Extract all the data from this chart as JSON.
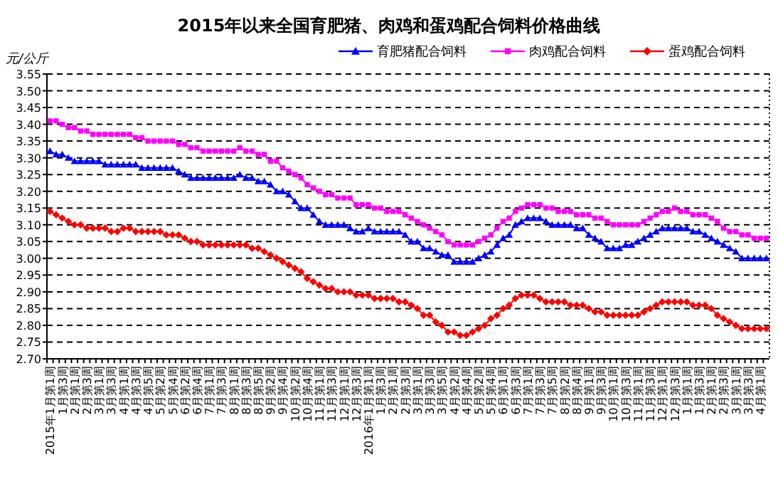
{
  "chart_data": {
    "type": "line",
    "title": "2015年以来全国育肥猪、肉鸡和蛋鸡配合饲料价格曲线",
    "ylabel": "元/公斤",
    "categories": [
      "2015年1月第1周",
      null,
      "1月第3周",
      null,
      "2月第1周",
      null,
      "2月第3周",
      null,
      "3月第1周",
      null,
      "3月第3周",
      null,
      "4月第1周",
      null,
      "4月第3周",
      null,
      "4月第5周",
      null,
      "5月第2周",
      null,
      "5月第4周",
      null,
      "6月第2周",
      null,
      "6月第4周",
      null,
      "7月第1周",
      null,
      "7月第3周",
      null,
      "8月第1周",
      null,
      "8月第3周",
      null,
      "8月第5周",
      null,
      "9月第2周",
      null,
      "9月第4周",
      null,
      "10月第2周",
      null,
      "10月第4周",
      null,
      "11月第1周",
      null,
      "11月第3周",
      null,
      "12月第1周",
      null,
      "12月第3周",
      null,
      "2016年1月第1周",
      null,
      "1月第3周",
      null,
      "2月第1周",
      null,
      "2月第3周",
      null,
      "3月第1周",
      null,
      "3月第3周",
      null,
      "3月第5周",
      null,
      "4月第2周",
      null,
      "4月第4周",
      null,
      "5月第2周",
      null,
      "5月第4周",
      null,
      "6月第1周",
      null,
      "6月第3周",
      null,
      "7月第1周",
      null,
      "7月第3周",
      null,
      "7月第5周",
      null,
      "8月第2周",
      null,
      "8月第4周",
      null,
      "9月第1周",
      null,
      "9月第3周",
      null,
      "10月第1周",
      null,
      "10月第3周",
      null,
      "11月第1周",
      null,
      "11月第3周",
      null,
      "12月第1周",
      null,
      "12月第3周",
      null,
      "1月第1周",
      null,
      "1月第3周",
      null,
      "2月第1周",
      null,
      "2月第3周",
      null,
      "3月第1周",
      null,
      "3月第3周",
      null,
      "4月第1周",
      null
    ],
    "series": [
      {
        "name": "育肥猪配合饲料",
        "color": "#0000ff",
        "marker": "triangle",
        "values": [
          3.32,
          3.31,
          3.31,
          3.3,
          3.29,
          3.29,
          3.29,
          3.29,
          3.29,
          3.28,
          3.28,
          3.28,
          3.28,
          3.28,
          3.28,
          3.27,
          3.27,
          3.27,
          3.27,
          3.27,
          3.27,
          3.26,
          3.25,
          3.24,
          3.24,
          3.24,
          3.24,
          3.24,
          3.24,
          3.24,
          3.24,
          3.25,
          3.24,
          3.24,
          3.23,
          3.23,
          3.22,
          3.2,
          3.2,
          3.19,
          3.17,
          3.15,
          3.15,
          3.13,
          3.11,
          3.1,
          3.1,
          3.1,
          3.1,
          3.09,
          3.08,
          3.08,
          3.09,
          3.08,
          3.08,
          3.08,
          3.08,
          3.08,
          3.07,
          3.05,
          3.05,
          3.03,
          3.03,
          3.02,
          3.01,
          3.01,
          2.99,
          2.99,
          2.99,
          2.99,
          3.0,
          3.01,
          3.02,
          3.04,
          3.06,
          3.07,
          3.1,
          3.11,
          3.12,
          3.12,
          3.12,
          3.11,
          3.1,
          3.1,
          3.1,
          3.1,
          3.09,
          3.09,
          3.07,
          3.06,
          3.05,
          3.03,
          3.03,
          3.03,
          3.04,
          3.04,
          3.05,
          3.06,
          3.07,
          3.08,
          3.09,
          3.09,
          3.09,
          3.09,
          3.09,
          3.08,
          3.08,
          3.07,
          3.06,
          3.05,
          3.04,
          3.03,
          3.02,
          3.0,
          3.0,
          3.0,
          3.0,
          3.0
        ]
      },
      {
        "name": "肉鸡配合饲料",
        "color": "#ff00ff",
        "marker": "square",
        "values": [
          3.41,
          3.41,
          3.4,
          3.39,
          3.39,
          3.38,
          3.38,
          3.37,
          3.37,
          3.37,
          3.37,
          3.37,
          3.37,
          3.37,
          3.36,
          3.36,
          3.35,
          3.35,
          3.35,
          3.35,
          3.35,
          3.34,
          3.34,
          3.33,
          3.33,
          3.32,
          3.32,
          3.32,
          3.32,
          3.32,
          3.32,
          3.33,
          3.32,
          3.32,
          3.31,
          3.31,
          3.29,
          3.29,
          3.27,
          3.26,
          3.25,
          3.24,
          3.22,
          3.21,
          3.2,
          3.19,
          3.19,
          3.18,
          3.18,
          3.18,
          3.16,
          3.16,
          3.16,
          3.15,
          3.15,
          3.14,
          3.14,
          3.14,
          3.13,
          3.12,
          3.11,
          3.1,
          3.09,
          3.08,
          3.07,
          3.05,
          3.04,
          3.04,
          3.04,
          3.04,
          3.05,
          3.06,
          3.07,
          3.09,
          3.11,
          3.12,
          3.14,
          3.15,
          3.16,
          3.16,
          3.16,
          3.15,
          3.15,
          3.14,
          3.14,
          3.14,
          3.13,
          3.13,
          3.13,
          3.12,
          3.12,
          3.11,
          3.1,
          3.1,
          3.1,
          3.1,
          3.1,
          3.11,
          3.12,
          3.13,
          3.14,
          3.14,
          3.15,
          3.14,
          3.14,
          3.13,
          3.13,
          3.13,
          3.12,
          3.11,
          3.09,
          3.08,
          3.08,
          3.07,
          3.07,
          3.06,
          3.06,
          3.06
        ]
      },
      {
        "name": "蛋鸡配合饲料",
        "color": "#ff0000",
        "marker": "diamond",
        "values": [
          3.14,
          3.13,
          3.12,
          3.11,
          3.1,
          3.1,
          3.09,
          3.09,
          3.09,
          3.09,
          3.08,
          3.08,
          3.09,
          3.09,
          3.08,
          3.08,
          3.08,
          3.08,
          3.08,
          3.07,
          3.07,
          3.07,
          3.06,
          3.05,
          3.05,
          3.04,
          3.04,
          3.04,
          3.04,
          3.04,
          3.04,
          3.04,
          3.04,
          3.03,
          3.03,
          3.02,
          3.01,
          3.0,
          2.99,
          2.98,
          2.97,
          2.96,
          2.94,
          2.93,
          2.92,
          2.91,
          2.91,
          2.9,
          2.9,
          2.9,
          2.89,
          2.89,
          2.89,
          2.88,
          2.88,
          2.88,
          2.88,
          2.87,
          2.87,
          2.86,
          2.85,
          2.83,
          2.83,
          2.81,
          2.8,
          2.78,
          2.78,
          2.77,
          2.77,
          2.78,
          2.79,
          2.8,
          2.82,
          2.83,
          2.85,
          2.86,
          2.88,
          2.89,
          2.89,
          2.89,
          2.88,
          2.87,
          2.87,
          2.87,
          2.87,
          2.86,
          2.86,
          2.86,
          2.85,
          2.84,
          2.84,
          2.83,
          2.83,
          2.83,
          2.83,
          2.83,
          2.83,
          2.84,
          2.85,
          2.86,
          2.87,
          2.87,
          2.87,
          2.87,
          2.87,
          2.86,
          2.86,
          2.86,
          2.85,
          2.83,
          2.82,
          2.81,
          2.8,
          2.79,
          2.79,
          2.79,
          2.79,
          2.79
        ]
      }
    ],
    "ylim": [
      2.7,
      3.55
    ],
    "yticks": [
      {
        "value": 2.7,
        "label": "2.70"
      },
      2.75,
      {
        "value": 2.8,
        "label": "2.80"
      },
      2.85,
      {
        "value": 2.9,
        "label": "2.90"
      },
      2.95,
      {
        "value": 3.0,
        "label": "3.00"
      },
      3.05,
      {
        "value": 3.1,
        "label": "3.10"
      },
      3.15,
      {
        "value": 3.2,
        "label": "3.20"
      },
      3.25,
      {
        "value": 3.3,
        "label": "3.30"
      },
      3.35,
      {
        "value": 3.4,
        "label": "3.40"
      },
      3.45,
      {
        "value": 3.5,
        "label": "3.50"
      },
      3.55
    ],
    "grid": "y",
    "legend": "top right",
    "line_style": "solid"
  }
}
